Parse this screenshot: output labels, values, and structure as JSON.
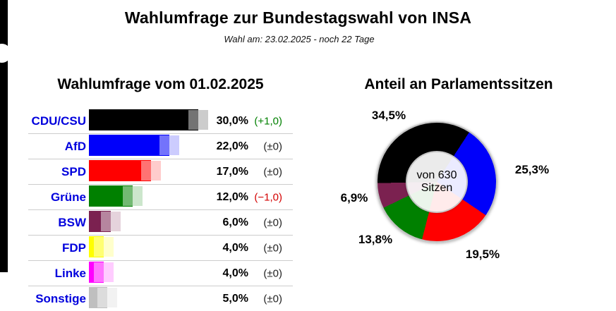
{
  "page": {
    "title": "Wahlumfrage zur Bundestagswahl von INSA",
    "subtitle": "Wahl am: 23.02.2025 - noch 22 Tage"
  },
  "poll": {
    "title": "Wahlumfrage vom 01.02.2025"
  },
  "seats": {
    "title": "Anteil an Parlamentssitzen",
    "center_line1": "von 630",
    "center_line2": "Sitzen"
  },
  "colors": {
    "party_link": "#0000dd",
    "positive_change": "#008000",
    "negative_change": "#d40000",
    "neutral_change": "#222222",
    "separator": "#cccccc"
  },
  "chart_data": [
    {
      "type": "bar",
      "orientation": "horizontal",
      "title": "Wahlumfrage vom 01.02.2025",
      "categories": [
        "CDU/CSU",
        "AfD",
        "SPD",
        "Grüne",
        "BSW",
        "FDP",
        "Linke",
        "Sonstige"
      ],
      "values": [
        30.0,
        22.0,
        17.0,
        12.0,
        6.0,
        4.0,
        4.0,
        5.0
      ],
      "value_labels": [
        "30,0%",
        "22,0%",
        "17,0%",
        "12,0%",
        "6,0%",
        "4,0%",
        "4,0%",
        "5,0%"
      ],
      "changes": [
        1.0,
        0,
        0,
        -1.0,
        0,
        0,
        0,
        0
      ],
      "change_labels": [
        "(+1,0)",
        "(±0)",
        "(±0)",
        "(−1,0)",
        "(±0)",
        "(±0)",
        "(±0)",
        "(±0)"
      ],
      "colors": [
        "#000000",
        "#0000fa",
        "#ff0000",
        "#008000",
        "#7b2150",
        "#ffff00",
        "#ff00ff",
        "#bfbfbf"
      ],
      "xlim": [
        0,
        30
      ],
      "grid": "row-separators-only",
      "legend_position": "none"
    },
    {
      "type": "pie",
      "subtype": "donut",
      "title": "Anteil an Parlamentssitzen",
      "categories": [
        "CDU/CSU",
        "AfD",
        "SPD",
        "Grüne",
        "BSW"
      ],
      "values": [
        34.5,
        25.3,
        19.5,
        13.8,
        6.9
      ],
      "labels": [
        "34,5%",
        "25,3%",
        "19,5%",
        "13,8%",
        "6,9%"
      ],
      "colors": [
        "#000000",
        "#0000fa",
        "#ff0000",
        "#008000",
        "#7b2150"
      ],
      "center_text": "von 630 Sitzen",
      "start_angle_deg": -91.1,
      "legend_position": "none"
    }
  ]
}
